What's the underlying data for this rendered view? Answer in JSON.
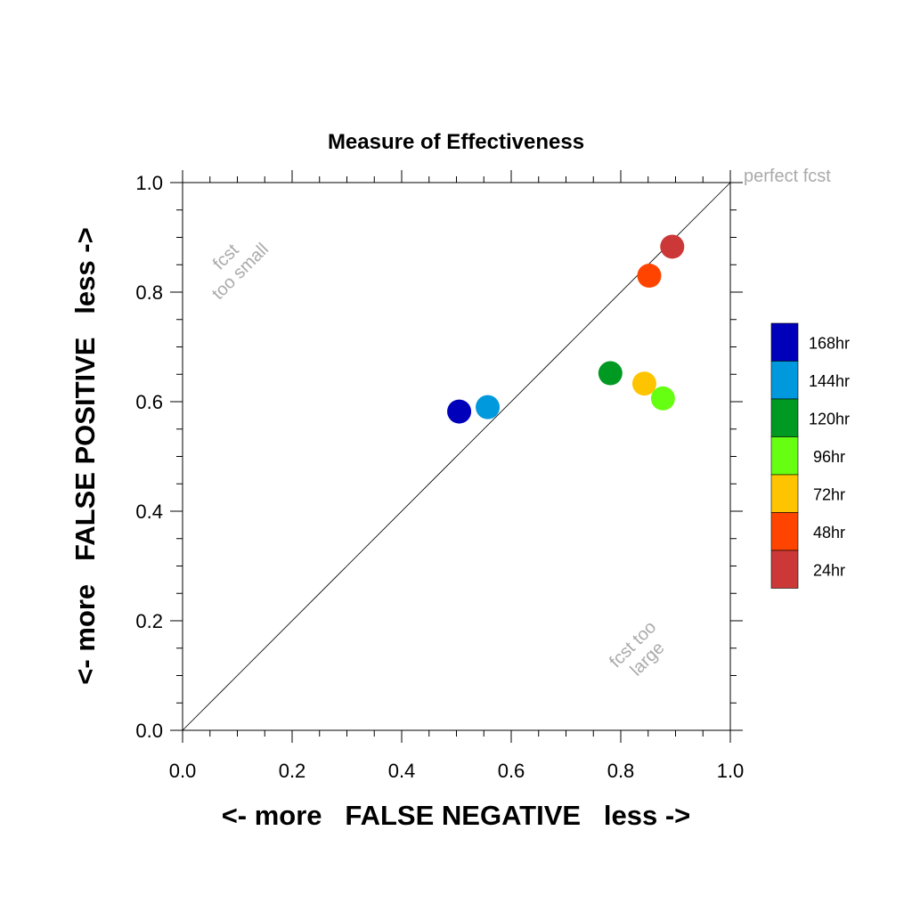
{
  "chart_data": {
    "type": "scatter",
    "title": "Measure of Effectiveness",
    "xlabel": "<- more   FALSE NEGATIVE   less ->",
    "ylabel": "<- more   FALSE POSITIVE   less ->",
    "xlim": [
      0.0,
      1.0
    ],
    "ylim": [
      0.0,
      1.0
    ],
    "xticks": [
      "0.0",
      "0.2",
      "0.4",
      "0.6",
      "0.8",
      "1.0"
    ],
    "yticks": [
      "0.0",
      "0.2",
      "0.4",
      "0.6",
      "0.8",
      "1.0"
    ],
    "grid": false,
    "reference_line": "diagonal",
    "annotations": {
      "top_right": "perfect fcst",
      "upper_left_line1": "fcst",
      "upper_left_line2": "too small",
      "lower_right_line1": "fcst too",
      "lower_right_line2": "large"
    },
    "legend_position": "right",
    "series": [
      {
        "name": "168hr",
        "color": "#0000bb",
        "x": 0.505,
        "y": 0.582
      },
      {
        "name": "144hr",
        "color": "#0099dd",
        "x": 0.557,
        "y": 0.59
      },
      {
        "name": "120hr",
        "color": "#009922",
        "x": 0.781,
        "y": 0.652
      },
      {
        "name": "96hr",
        "color": "#66ff11",
        "x": 0.877,
        "y": 0.606
      },
      {
        "name": "72hr",
        "color": "#ffc400",
        "x": 0.843,
        "y": 0.633
      },
      {
        "name": "48hr",
        "color": "#ff4400",
        "x": 0.852,
        "y": 0.83
      },
      {
        "name": "24hr",
        "color": "#cc3838",
        "x": 0.894,
        "y": 0.883
      }
    ]
  }
}
